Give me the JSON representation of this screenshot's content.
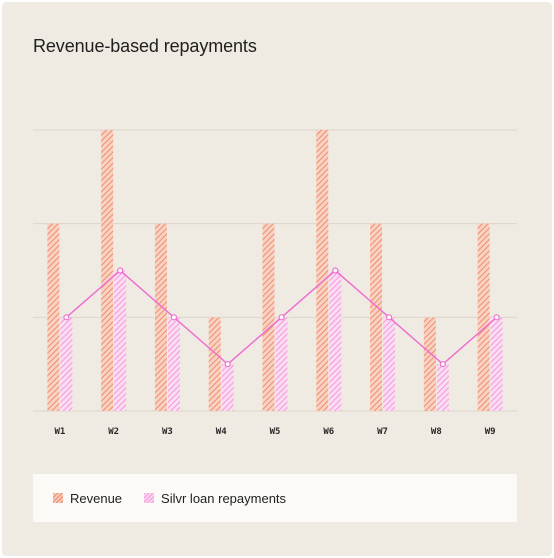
{
  "colors": {
    "background": "#efebe2",
    "revenue": "#f08d6e",
    "repayments": "#f29ad9",
    "line": "#ef6fd0",
    "grid": "#ddd6ca"
  },
  "chart_data": {
    "type": "bar",
    "title": "Revenue-based repayments",
    "categories": [
      "W1",
      "W2",
      "W3",
      "W4",
      "W5",
      "W6",
      "W7",
      "W8",
      "W9"
    ],
    "series": [
      {
        "name": "Revenue",
        "values": [
          2,
          3,
          2,
          1,
          2,
          3,
          2,
          1,
          2
        ]
      },
      {
        "name": "Silvr loan repayments",
        "values": [
          1,
          1.5,
          1,
          0.5,
          1,
          1.5,
          1,
          0.5,
          1
        ]
      }
    ],
    "line_series": "Silvr loan repayments",
    "ylim": [
      0,
      3
    ],
    "grid": true,
    "legend_position": "bottom"
  }
}
